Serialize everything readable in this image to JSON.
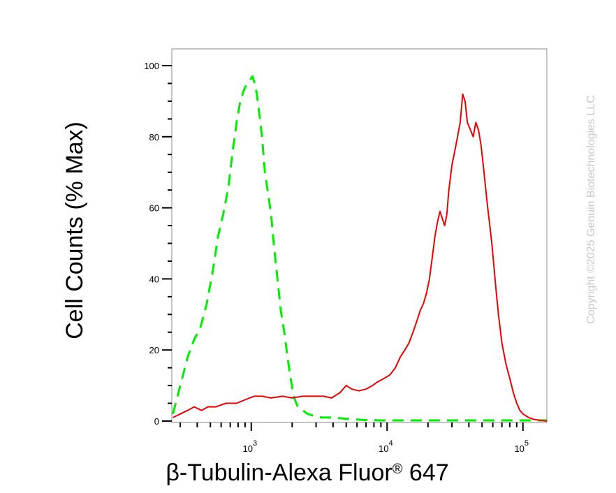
{
  "chart_data": {
    "type": "line",
    "xlabel": "β-Tubulin-Alexa Fluor",
    "xlabel_sup": "®",
    "xlabel_suffix": " 647",
    "ylabel": "Cell Counts (% Max)",
    "x_scale": "log",
    "xlim": [
      260,
      150000
    ],
    "ylim": [
      0,
      105
    ],
    "yticks": [
      0,
      20,
      40,
      60,
      80,
      100
    ],
    "ytick_labels": [
      "0",
      "20",
      "40",
      "60",
      "80",
      "100"
    ],
    "xticks": [
      1000,
      10000,
      100000
    ],
    "xtick_labels": [
      {
        "base": "10",
        "exp": "3"
      },
      {
        "base": "10",
        "exp": "4"
      },
      {
        "base": "10",
        "exp": "5"
      }
    ],
    "grid": false,
    "series": [
      {
        "color": "#00ee00",
        "dash": "dashed",
        "x": [
          265,
          300,
          340,
          380,
          420,
          470,
          520,
          570,
          620,
          680,
          730,
          780,
          830,
          880,
          930,
          980,
          1020,
          1060,
          1100,
          1150,
          1200,
          1260,
          1330,
          1400,
          1480,
          1560,
          1650,
          1750,
          1850,
          1950,
          2050,
          2200,
          2400,
          2600,
          2900,
          3300,
          3800,
          4500,
          5500,
          7000,
          9000,
          15000,
          30000,
          60000,
          100000,
          150000
        ],
        "y": [
          2,
          10,
          18,
          23,
          26,
          33,
          42,
          52,
          58,
          66,
          76,
          84,
          90,
          93,
          95,
          96,
          97,
          95,
          92,
          86,
          80,
          70,
          64,
          58,
          48,
          40,
          31,
          25,
          18,
          12,
          7,
          4,
          3,
          2,
          1.5,
          1,
          1,
          0.8,
          0.5,
          0.3,
          0.2,
          0.2,
          0.2,
          0.2,
          0.2,
          0.2
        ]
      },
      {
        "color": "#ee0000",
        "dash": "solid",
        "x": [
          265,
          300,
          340,
          380,
          430,
          480,
          550,
          650,
          780,
          900,
          1050,
          1200,
          1400,
          1700,
          2000,
          2400,
          2900,
          3400,
          3900,
          4500,
          5000,
          5500,
          6200,
          7000,
          7800,
          8500,
          9500,
          10500,
          11500,
          12500,
          13500,
          14500,
          15500,
          16500,
          17500,
          18500,
          19500,
          20500,
          21500,
          22500,
          23500,
          24500,
          25500,
          26500,
          27500,
          28500,
          30000,
          31500,
          33000,
          34500,
          36000,
          37500,
          39000,
          41000,
          43000,
          45000,
          47000,
          49000,
          51000,
          53000,
          55000,
          57000,
          59000,
          61000,
          63000,
          66000,
          70000,
          75000,
          80000,
          85000,
          90000,
          95000,
          100000,
          110000,
          120000,
          135000,
          150000
        ],
        "y": [
          1,
          2,
          3,
          4,
          3,
          4,
          4,
          5,
          5,
          6,
          7,
          7,
          6.5,
          7,
          6.5,
          7,
          7,
          7,
          6.5,
          8,
          10,
          9,
          8.5,
          9,
          10,
          11,
          12,
          13,
          15,
          18,
          20,
          22,
          25,
          28,
          31,
          33,
          36,
          40,
          46,
          52,
          56,
          59,
          57,
          55,
          58,
          65,
          72,
          76,
          80,
          84,
          92,
          90,
          84,
          82,
          80,
          84,
          82,
          78,
          72,
          66,
          60,
          55,
          50,
          44,
          38,
          30,
          22,
          16,
          12,
          8,
          5,
          3,
          2,
          1,
          0.5,
          0.2,
          0
        ]
      }
    ]
  },
  "copyright": "Copyright ©2025 Genuin Biotechnologies LLC"
}
